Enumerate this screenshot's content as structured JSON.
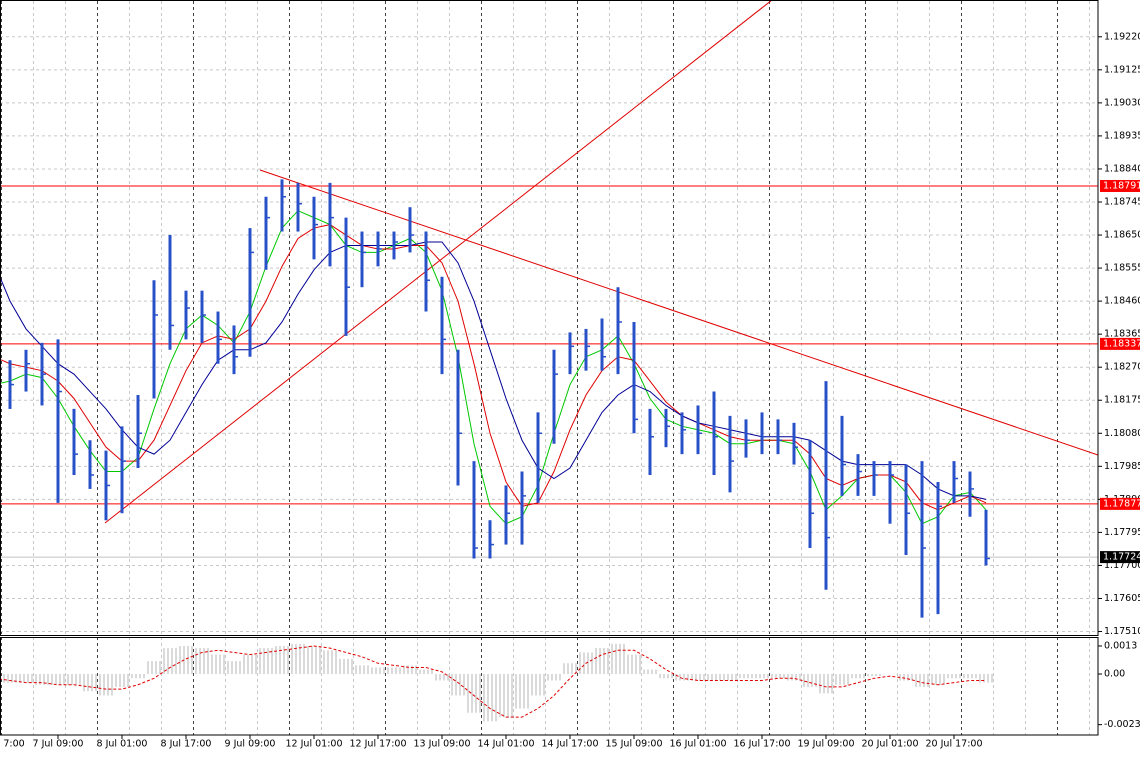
{
  "chart_data": [
    {
      "type": "ohlc",
      "categories": [
        "7:00",
        null,
        null,
        null,
        "7 Jul 09:00",
        null,
        null,
        null,
        "8 Jul 01:00",
        null,
        null,
        null,
        "8 Jul 17:00",
        null,
        null,
        null,
        "9 Jul 09:00",
        null,
        null,
        null,
        "12 Jul 01:00",
        null,
        null,
        null,
        "12 Jul 17:00",
        null,
        null,
        null,
        "13 Jul 09:00",
        null,
        null,
        null,
        "14 Jul 01:00",
        null,
        null,
        null,
        "14 Jul 17:00",
        null,
        null,
        null,
        "15 Jul 09:00",
        null,
        null,
        null,
        "16 Jul 01:00",
        null,
        null,
        null,
        "16 Jul 17:00",
        null,
        null,
        null,
        "19 Jul 09:00",
        null,
        null,
        null,
        "20 Jul 01:00",
        null,
        null,
        null,
        "20 Jul 17:00",
        null,
        null
      ],
      "high": [
        1.1828,
        1.1829,
        1.1832,
        1.1834,
        1.1835,
        1.1815,
        1.1806,
        1.1803,
        1.181,
        1.1819,
        1.1852,
        1.1865,
        1.1849,
        1.1849,
        1.1843,
        1.1839,
        1.1867,
        1.1876,
        1.1881,
        1.188,
        1.1876,
        1.188,
        1.187,
        1.1866,
        1.1866,
        1.1866,
        1.1873,
        1.1866,
        1.1853,
        1.1832,
        1.18,
        1.1783,
        1.1793,
        1.1797,
        1.1814,
        1.1832,
        1.1837,
        1.1838,
        1.1841,
        1.185,
        1.184,
        1.1815,
        1.1815,
        1.1814,
        1.1816,
        1.182,
        1.1813,
        1.1812,
        1.1814,
        1.1812,
        1.1811,
        1.1806,
        1.1823,
        1.1813,
        1.1802,
        1.18,
        1.18,
        1.1799,
        1.18,
        1.1794,
        1.18,
        1.1797,
        1.1786
      ],
      "low": [
        1.1818,
        1.1815,
        1.182,
        1.1816,
        1.1788,
        1.1796,
        1.1792,
        1.1783,
        1.1785,
        1.1798,
        1.1818,
        1.1832,
        1.1835,
        1.1834,
        1.1828,
        1.1825,
        1.183,
        1.1855,
        1.1866,
        1.1866,
        1.1858,
        1.1856,
        1.1836,
        1.185,
        1.1856,
        1.1858,
        1.186,
        1.1843,
        1.1825,
        1.1793,
        1.1772,
        1.1772,
        1.1776,
        1.1776,
        1.1788,
        1.1805,
        1.1825,
        1.1826,
        1.1826,
        1.1825,
        1.1808,
        1.1796,
        1.1804,
        1.1802,
        1.1802,
        1.1796,
        1.1791,
        1.1801,
        1.1802,
        1.1802,
        1.1799,
        1.1775,
        1.1763,
        1.179,
        1.179,
        1.179,
        1.1782,
        1.1773,
        1.1755,
        1.1756,
        1.1788,
        1.1784,
        1.177
      ],
      "close": [
        1.1824,
        1.1822,
        1.1828,
        1.1825,
        1.182,
        1.1802,
        1.1796,
        1.1793,
        1.18,
        1.1808,
        1.1842,
        1.1839,
        1.1844,
        1.1842,
        1.1835,
        1.183,
        1.186,
        1.187,
        1.1876,
        1.1874,
        1.1868,
        1.187,
        1.185,
        1.186,
        1.1861,
        1.1863,
        1.1865,
        1.1852,
        1.1835,
        1.1808,
        1.1775,
        1.1776,
        1.1785,
        1.179,
        1.1808,
        1.1825,
        1.1833,
        1.1833,
        1.183,
        1.184,
        1.1812,
        1.1807,
        1.181,
        1.1809,
        1.1808,
        1.1807,
        1.18,
        1.1806,
        1.1807,
        1.1806,
        1.1804,
        1.1785,
        1.1778,
        1.1799,
        1.1797,
        1.1796,
        1.1796,
        1.1785,
        1.1775,
        1.1787,
        1.1795,
        1.1792,
        1.1772
      ],
      "color": "#2850c8",
      "moving_averages": [
        {
          "color": "#00c800",
          "values": [
            1.1822,
            1.1823,
            1.1825,
            1.1824,
            1.1818,
            1.181,
            1.1803,
            1.1797,
            1.1797,
            1.1801,
            1.1815,
            1.1828,
            1.1838,
            1.1842,
            1.1839,
            1.1834,
            1.1843,
            1.1856,
            1.1867,
            1.1872,
            1.187,
            1.1868,
            1.1862,
            1.186,
            1.186,
            1.1862,
            1.1864,
            1.186,
            1.1849,
            1.183,
            1.1805,
            1.1787,
            1.1782,
            1.1784,
            1.1793,
            1.1808,
            1.1822,
            1.183,
            1.1832,
            1.1836,
            1.1828,
            1.1818,
            1.1812,
            1.181,
            1.1809,
            1.1808,
            1.1805,
            1.1805,
            1.1806,
            1.1806,
            1.1805,
            1.1797,
            1.1786,
            1.179,
            1.1795,
            1.1796,
            1.1796,
            1.1791,
            1.1782,
            1.1784,
            1.179,
            1.1791,
            1.1786
          ]
        },
        {
          "color": "#e00000",
          "values": [
            1.183,
            1.1828,
            1.1827,
            1.1826,
            1.1823,
            1.1818,
            1.1811,
            1.1804,
            1.18,
            1.18,
            1.1806,
            1.1816,
            1.1826,
            1.1834,
            1.1836,
            1.1835,
            1.1838,
            1.1846,
            1.1856,
            1.1864,
            1.1867,
            1.1868,
            1.1865,
            1.1862,
            1.1861,
            1.1861,
            1.1862,
            1.1862,
            1.1857,
            1.1846,
            1.1828,
            1.1808,
            1.1794,
            1.1787,
            1.1788,
            1.1797,
            1.1809,
            1.1819,
            1.1826,
            1.183,
            1.1829,
            1.1823,
            1.1817,
            1.1813,
            1.1811,
            1.1809,
            1.1807,
            1.1806,
            1.1806,
            1.1806,
            1.1806,
            1.1802,
            1.1795,
            1.1793,
            1.1795,
            1.1796,
            1.1796,
            1.1794,
            1.1788,
            1.1786,
            1.1788,
            1.179,
            1.1788
          ]
        },
        {
          "color": "#000096",
          "values": [
            1.1857,
            1.1846,
            1.1838,
            1.1833,
            1.1828,
            1.1825,
            1.182,
            1.1815,
            1.1809,
            1.1804,
            1.1802,
            1.1806,
            1.1814,
            1.1822,
            1.1829,
            1.1832,
            1.1832,
            1.1834,
            1.184,
            1.1848,
            1.1855,
            1.186,
            1.1862,
            1.1862,
            1.1862,
            1.1862,
            1.1862,
            1.1863,
            1.1863,
            1.1857,
            1.1846,
            1.1832,
            1.1818,
            1.1806,
            1.1798,
            1.1795,
            1.1798,
            1.1806,
            1.1814,
            1.1819,
            1.1822,
            1.182,
            1.1816,
            1.1813,
            1.1811,
            1.181,
            1.1809,
            1.1808,
            1.1807,
            1.1807,
            1.1807,
            1.1806,
            1.1803,
            1.18,
            1.1799,
            1.1799,
            1.1799,
            1.1799,
            1.1796,
            1.1792,
            1.179,
            1.179,
            1.1789
          ]
        }
      ],
      "ylim": [
        1.175,
        1.1932
      ],
      "yticks": [
        {
          "value": 1.1922,
          "label": "1.19220"
        },
        {
          "value": 1.19125,
          "label": "1.19125"
        },
        {
          "value": 1.1903,
          "label": "1.19030"
        },
        {
          "value": 1.18935,
          "label": "1.18935"
        },
        {
          "value": 1.1884,
          "label": "1.18840"
        },
        {
          "value": 1.18745,
          "label": "1.18745"
        },
        {
          "value": 1.1865,
          "label": "1.18650"
        },
        {
          "value": 1.18555,
          "label": "1.18555"
        },
        {
          "value": 1.1846,
          "label": "1.18460"
        },
        {
          "value": 1.18365,
          "label": "1.18365"
        },
        {
          "value": 1.1827,
          "label": "1.18270"
        },
        {
          "value": 1.18175,
          "label": "1.18175"
        },
        {
          "value": 1.1808,
          "label": "1.18080"
        },
        {
          "value": 1.17985,
          "label": "1.17985"
        },
        {
          "value": 1.1789,
          "label": "1.17890"
        },
        {
          "value": 1.17795,
          "label": "1.17795"
        },
        {
          "value": 1.177,
          "label": "1.17700"
        },
        {
          "value": 1.17605,
          "label": "1.17605"
        },
        {
          "value": 1.1751,
          "label": "1.17510"
        }
      ],
      "grid": true,
      "levels": [
        1.18791,
        1.18337,
        1.17877
      ],
      "level_color": "#ff0000",
      "current_price": 1.17724
    },
    {
      "type": "macd",
      "histogram": [
        -0.0003,
        -0.0004,
        -0.0004,
        -0.0005,
        -0.0005,
        -0.0005,
        -0.0008,
        -0.001,
        -0.0006,
        -0.0002,
        0.0006,
        0.0012,
        0.0013,
        0.0012,
        0.0009,
        0.0006,
        0.0009,
        0.0012,
        0.0013,
        0.0014,
        0.0013,
        0.0011,
        0.0007,
        0.0004,
        0.0003,
        0.0003,
        0.0004,
        0.0002,
        -0.0003,
        -0.001,
        -0.0018,
        -0.0022,
        -0.002,
        -0.0016,
        -0.001,
        -0.0003,
        0.0005,
        0.001,
        0.0012,
        0.0014,
        0.0009,
        0.0002,
        -0.0002,
        -0.0003,
        -0.0003,
        -0.0003,
        -0.0003,
        -0.0002,
        -0.0002,
        -0.0002,
        -0.0003,
        -0.0006,
        -0.0009,
        -0.0005,
        -0.0002,
        -0.0001,
        0,
        -0.0003,
        -0.0006,
        -0.0005,
        -0.0002,
        -0.0002,
        -0.0004
      ],
      "histogram_color": "#b4b4b4",
      "signal": [
        -0.0002,
        -0.0003,
        -0.0004,
        -0.0004,
        -0.0005,
        -0.0005,
        -0.0006,
        -0.0007,
        -0.0007,
        -0.0005,
        -0.0002,
        0.0003,
        0.0007,
        0.001,
        0.0011,
        0.001,
        0.0009,
        0.001,
        0.0011,
        0.0012,
        0.0013,
        0.0012,
        0.001,
        0.0008,
        0.0005,
        0.0004,
        0.0003,
        0.0003,
        0.0001,
        -0.0004,
        -0.001,
        -0.0016,
        -0.002,
        -0.002,
        -0.0016,
        -0.001,
        -0.0002,
        0.0005,
        0.0009,
        0.0011,
        0.0011,
        0.0007,
        0.0002,
        -0.0002,
        -0.0003,
        -0.0003,
        -0.0003,
        -0.0003,
        -0.0003,
        -0.0002,
        -0.0002,
        -0.0004,
        -0.0006,
        -0.0006,
        -0.0004,
        -0.0002,
        -0.0001,
        -0.0002,
        -0.0004,
        -0.0005,
        -0.0004,
        -0.0003,
        -0.0003
      ],
      "signal_color": "#e00000",
      "ylim": [
        -0.00283,
        0.00167
      ],
      "yticks": [
        0.0013,
        {
          "value": 0,
          "label": "0.00"
        },
        -0.00235
      ]
    }
  ]
}
